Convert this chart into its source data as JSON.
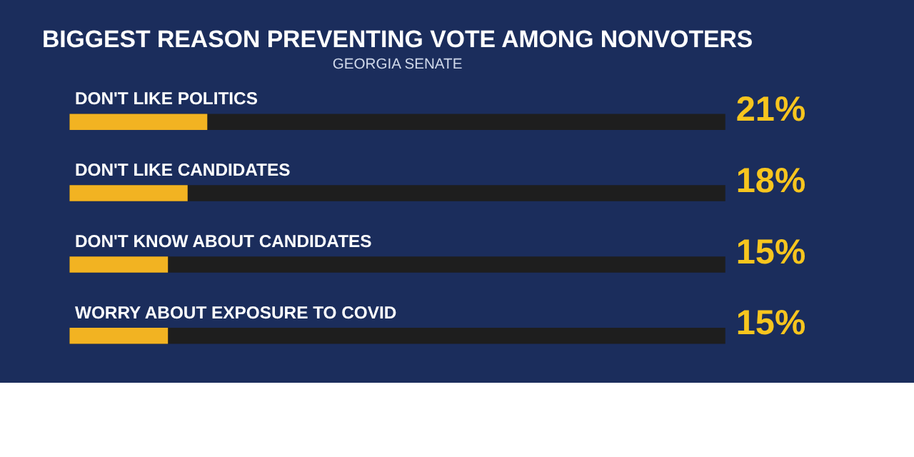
{
  "chart_data": {
    "type": "bar",
    "orientation": "horizontal",
    "title": "BIGGEST REASON PREVENTING VOTE AMONG NONVOTERS",
    "subtitle": "GEORGIA SENATE",
    "categories": [
      "DON'T LIKE POLITICS",
      "DON'T LIKE CANDIDATES",
      "DON'T KNOW ABOUT CANDIDATES",
      "WORRY ABOUT EXPOSURE TO COVID"
    ],
    "values": [
      21,
      18,
      15,
      15
    ],
    "color": "#f2b322",
    "value_labels": [
      "21%",
      "18%",
      "15%",
      "15%"
    ],
    "xlim": [
      0,
      100
    ],
    "tick_labels": false
  }
}
